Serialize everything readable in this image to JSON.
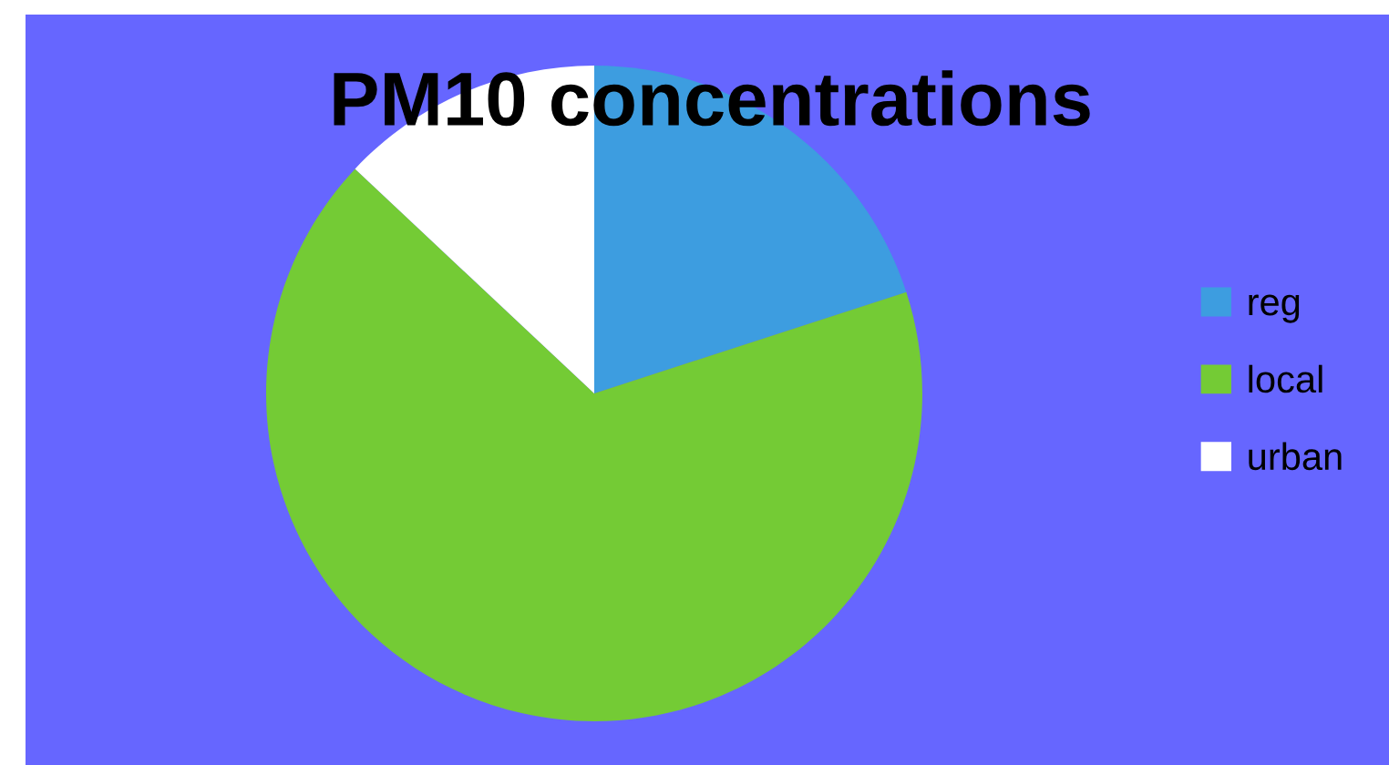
{
  "chart_data": {
    "type": "pie",
    "title": "PM10 concentrations",
    "categories": [
      "reg",
      "local",
      "urban"
    ],
    "values": [
      20,
      67,
      13
    ],
    "colors": [
      "#3d9de0",
      "#74cb35",
      "#ffffff"
    ],
    "legend": "right"
  }
}
